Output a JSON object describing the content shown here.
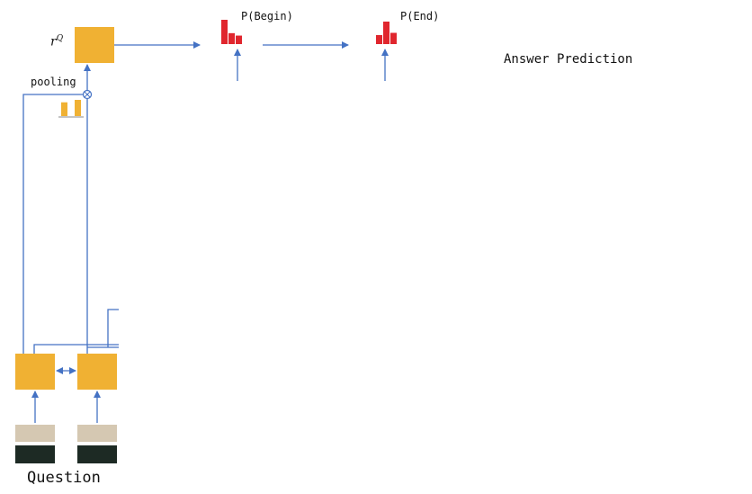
{
  "labels": {
    "rq_base": "r",
    "rq_sup": "Q",
    "pooling": "pooling",
    "p_begin": "P(Begin)",
    "p_end": "P(End)",
    "answer_prediction": "Answer Prediction",
    "question": "Question"
  },
  "colors": {
    "lstm_cell": "#F0B133",
    "arrow": "#4472C4",
    "prob_bar": "#E0262E",
    "embedding_top": "#D5C8B2",
    "embedding_bottom": "#1D2A24"
  },
  "bars": {
    "pooling_weights": [
      0.85,
      1.0
    ],
    "p_begin": [
      1.0,
      0.45,
      0.35
    ],
    "p_end": [
      0.4,
      1.0,
      0.5
    ]
  }
}
